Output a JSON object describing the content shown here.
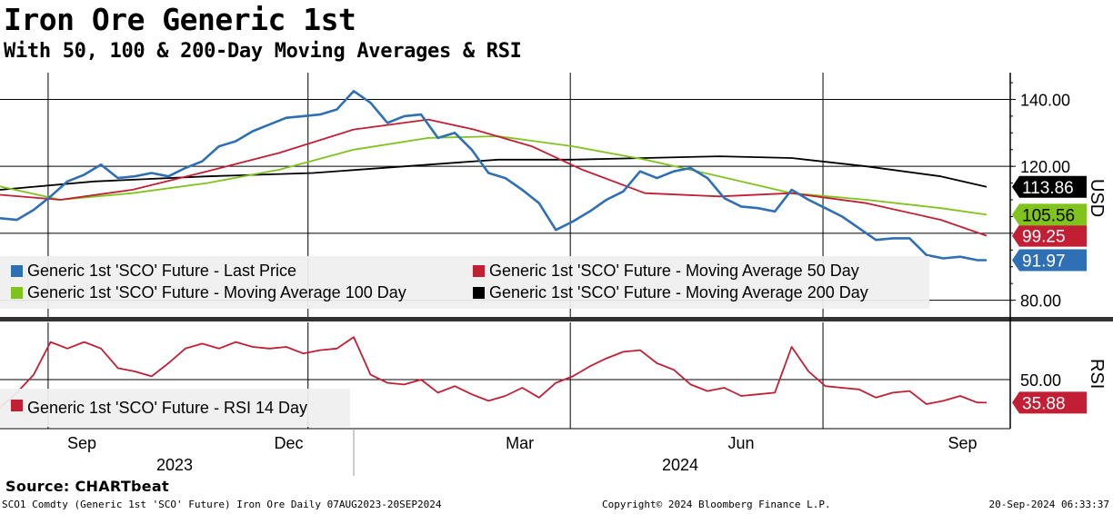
{
  "header": {
    "title": "Iron Ore Generic 1st",
    "subtitle": "With 50, 100 & 200-Day Moving Averages & RSI"
  },
  "footer": {
    "source": "Source: CHARTbeat",
    "security": "SCO1 Comdty (Generic 1st 'SCO' Future) Iron Ore  Daily 07AUG2023-20SEP2024",
    "copyright": "Copyright© 2024 Bloomberg Finance L.P.",
    "timestamp": "20-Sep-2024 06:33:37"
  },
  "colors": {
    "price": "#2f6fb4",
    "ma50": "#c21e34",
    "ma100": "#7fc31c",
    "ma200": "#000000",
    "rsi": "#c21e34",
    "legend_bg": "#efefef"
  },
  "chart_data": [
    {
      "type": "line",
      "panel": "price",
      "ylabel": "USD",
      "ylim": [
        75,
        148
      ],
      "yticks": [
        "140.00",
        "120.00",
        "80.00"
      ],
      "xlim": [
        "2023-08-07",
        "2024-09-20"
      ],
      "x_ticks": [
        "Sep",
        "Dec",
        "Mar",
        "Jun",
        "Sep"
      ],
      "x_years": [
        "2023",
        "2024"
      ],
      "grid": true,
      "legend_position": "bottom-left",
      "series": [
        {
          "name": "Generic 1st 'SCO' Future - Last Price",
          "key": "price",
          "last_label": "91.97",
          "points": [
            [
              "2023-08-07",
              104.5
            ],
            [
              "2023-08-14",
              104.0
            ],
            [
              "2023-08-21",
              107.0
            ],
            [
              "2023-08-28",
              111.0
            ],
            [
              "2023-09-04",
              115.5
            ],
            [
              "2023-09-11",
              117.5
            ],
            [
              "2023-09-18",
              120.5
            ],
            [
              "2023-09-25",
              116.5
            ],
            [
              "2023-10-02",
              117.0
            ],
            [
              "2023-10-09",
              118.0
            ],
            [
              "2023-10-16",
              117.0
            ],
            [
              "2023-10-23",
              119.5
            ],
            [
              "2023-10-30",
              121.5
            ],
            [
              "2023-11-06",
              126.0
            ],
            [
              "2023-11-13",
              127.5
            ],
            [
              "2023-11-20",
              130.5
            ],
            [
              "2023-11-27",
              132.5
            ],
            [
              "2023-12-04",
              134.5
            ],
            [
              "2023-12-11",
              135.0
            ],
            [
              "2023-12-18",
              135.5
            ],
            [
              "2023-12-25",
              137.0
            ],
            [
              "2024-01-01",
              142.5
            ],
            [
              "2024-01-08",
              139.0
            ],
            [
              "2024-01-15",
              133.0
            ],
            [
              "2024-01-22",
              135.0
            ],
            [
              "2024-01-29",
              135.5
            ],
            [
              "2024-02-05",
              128.5
            ],
            [
              "2024-02-12",
              130.0
            ],
            [
              "2024-02-19",
              125.0
            ],
            [
              "2024-02-26",
              118.0
            ],
            [
              "2024-03-04",
              116.5
            ],
            [
              "2024-03-11",
              113.0
            ],
            [
              "2024-03-18",
              109.0
            ],
            [
              "2024-03-25",
              101.0
            ],
            [
              "2024-04-01",
              103.5
            ],
            [
              "2024-04-08",
              106.5
            ],
            [
              "2024-04-15",
              110.0
            ],
            [
              "2024-04-22",
              112.5
            ],
            [
              "2024-04-29",
              118.5
            ],
            [
              "2024-05-06",
              116.5
            ],
            [
              "2024-05-13",
              118.5
            ],
            [
              "2024-05-20",
              119.5
            ],
            [
              "2024-05-27",
              116.5
            ],
            [
              "2024-06-03",
              110.5
            ],
            [
              "2024-06-10",
              108.0
            ],
            [
              "2024-06-17",
              107.5
            ],
            [
              "2024-06-24",
              106.5
            ],
            [
              "2024-07-01",
              113.0
            ],
            [
              "2024-07-08",
              110.0
            ],
            [
              "2024-07-15",
              107.5
            ],
            [
              "2024-07-22",
              105.0
            ],
            [
              "2024-07-29",
              101.5
            ],
            [
              "2024-08-05",
              98.0
            ],
            [
              "2024-08-12",
              98.5
            ],
            [
              "2024-08-19",
              98.5
            ],
            [
              "2024-08-26",
              93.5
            ],
            [
              "2024-09-02",
              92.5
            ],
            [
              "2024-09-09",
              93.0
            ],
            [
              "2024-09-16",
              92.0
            ],
            [
              "2024-09-20",
              91.97
            ]
          ]
        },
        {
          "name": "Generic 1st 'SCO' Future - Moving Average 50 Day",
          "key": "ma50",
          "last_label": "99.25",
          "points": [
            [
              "2023-08-07",
              111.5
            ],
            [
              "2023-09-01",
              110.0
            ],
            [
              "2023-10-01",
              113.0
            ],
            [
              "2023-11-01",
              118.5
            ],
            [
              "2023-12-01",
              124.0
            ],
            [
              "2024-01-01",
              131.0
            ],
            [
              "2024-02-01",
              134.0
            ],
            [
              "2024-02-20",
              131.0
            ],
            [
              "2024-03-15",
              126.0
            ],
            [
              "2024-04-05",
              119.0
            ],
            [
              "2024-05-01",
              112.0
            ],
            [
              "2024-06-01",
              111.0
            ],
            [
              "2024-07-01",
              112.0
            ],
            [
              "2024-08-01",
              109.0
            ],
            [
              "2024-09-01",
              104.0
            ],
            [
              "2024-09-20",
              99.25
            ]
          ]
        },
        {
          "name": "Generic 1st 'SCO' Future - Moving Average 100 Day",
          "key": "ma100",
          "last_label": "105.56",
          "points": [
            [
              "2023-08-07",
              114.0
            ],
            [
              "2023-09-01",
              110.0
            ],
            [
              "2023-10-01",
              112.0
            ],
            [
              "2023-11-01",
              115.0
            ],
            [
              "2023-12-01",
              119.0
            ],
            [
              "2024-01-01",
              125.0
            ],
            [
              "2024-02-01",
              128.5
            ],
            [
              "2024-03-01",
              129.0
            ],
            [
              "2024-04-01",
              126.0
            ],
            [
              "2024-05-01",
              122.0
            ],
            [
              "2024-06-01",
              117.0
            ],
            [
              "2024-07-01",
              112.0
            ],
            [
              "2024-08-01",
              110.0
            ],
            [
              "2024-09-01",
              107.5
            ],
            [
              "2024-09-20",
              105.56
            ]
          ]
        },
        {
          "name": "Generic 1st 'SCO' Future - Moving Average 200 Day",
          "key": "ma200",
          "last_label": "113.86",
          "points": [
            [
              "2023-08-07",
              113.0
            ],
            [
              "2023-09-15",
              115.5
            ],
            [
              "2023-11-01",
              117.0
            ],
            [
              "2023-12-15",
              118.0
            ],
            [
              "2024-02-01",
              120.5
            ],
            [
              "2024-03-01",
              122.0
            ],
            [
              "2024-04-01",
              122.0
            ],
            [
              "2024-05-01",
              122.5
            ],
            [
              "2024-06-01",
              123.0
            ],
            [
              "2024-07-01",
              122.5
            ],
            [
              "2024-08-01",
              120.0
            ],
            [
              "2024-09-01",
              117.0
            ],
            [
              "2024-09-20",
              113.86
            ]
          ]
        }
      ]
    },
    {
      "type": "line",
      "panel": "rsi",
      "ylabel": "RSI",
      "ylim": [
        20,
        85
      ],
      "yticks": [
        "50.00"
      ],
      "series": [
        {
          "name": "Generic 1st 'SCO' Future - RSI 14 Day",
          "key": "rsi",
          "last_label": "35.88",
          "points": [
            [
              "2023-08-07",
              33
            ],
            [
              "2023-08-14",
              42
            ],
            [
              "2023-08-21",
              53
            ],
            [
              "2023-08-28",
              73
            ],
            [
              "2023-09-04",
              69
            ],
            [
              "2023-09-11",
              73
            ],
            [
              "2023-09-18",
              69
            ],
            [
              "2023-09-25",
              57
            ],
            [
              "2023-10-02",
              55
            ],
            [
              "2023-10-09",
              52
            ],
            [
              "2023-10-16",
              60
            ],
            [
              "2023-10-23",
              69
            ],
            [
              "2023-10-30",
              72
            ],
            [
              "2023-11-06",
              69
            ],
            [
              "2023-11-13",
              73
            ],
            [
              "2023-11-20",
              70
            ],
            [
              "2023-11-27",
              69
            ],
            [
              "2023-12-04",
              70
            ],
            [
              "2023-12-11",
              66
            ],
            [
              "2023-12-18",
              68
            ],
            [
              "2023-12-25",
              69
            ],
            [
              "2024-01-01",
              76
            ],
            [
              "2024-01-08",
              53
            ],
            [
              "2024-01-15",
              48
            ],
            [
              "2024-01-22",
              47
            ],
            [
              "2024-01-29",
              50
            ],
            [
              "2024-02-05",
              42
            ],
            [
              "2024-02-12",
              46
            ],
            [
              "2024-02-19",
              41
            ],
            [
              "2024-02-26",
              37
            ],
            [
              "2024-03-04",
              40
            ],
            [
              "2024-03-11",
              45
            ],
            [
              "2024-03-18",
              39
            ],
            [
              "2024-03-25",
              48
            ],
            [
              "2024-04-01",
              52
            ],
            [
              "2024-04-08",
              58
            ],
            [
              "2024-04-15",
              63
            ],
            [
              "2024-04-22",
              67
            ],
            [
              "2024-04-29",
              68
            ],
            [
              "2024-05-06",
              60
            ],
            [
              "2024-05-13",
              56
            ],
            [
              "2024-05-20",
              47
            ],
            [
              "2024-05-27",
              43
            ],
            [
              "2024-06-03",
              45
            ],
            [
              "2024-06-10",
              40
            ],
            [
              "2024-06-17",
              41
            ],
            [
              "2024-06-24",
              42
            ],
            [
              "2024-07-01",
              70
            ],
            [
              "2024-07-08",
              55
            ],
            [
              "2024-07-15",
              46
            ],
            [
              "2024-07-22",
              45
            ],
            [
              "2024-07-29",
              44
            ],
            [
              "2024-08-05",
              39
            ],
            [
              "2024-08-12",
              42
            ],
            [
              "2024-08-19",
              43
            ],
            [
              "2024-08-26",
              35
            ],
            [
              "2024-09-02",
              37
            ],
            [
              "2024-09-09",
              40
            ],
            [
              "2024-09-16",
              36
            ],
            [
              "2024-09-20",
              35.88
            ]
          ]
        }
      ]
    }
  ]
}
